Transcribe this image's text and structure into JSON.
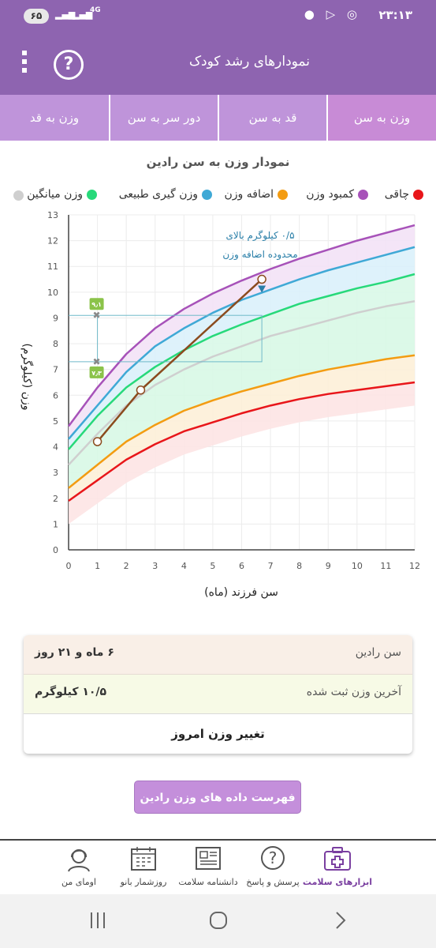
{
  "status_bar": {
    "battery": "۶۵",
    "network": "4G",
    "time": "۲۳:۱۳"
  },
  "app_bar": {
    "title": "نمودارهای رشد کودک"
  },
  "tabs": [
    {
      "label": "وزن به سن",
      "selected": true
    },
    {
      "label": "قد به سن",
      "selected": false
    },
    {
      "label": "دور سر به سن",
      "selected": false
    },
    {
      "label": "وزن به قد",
      "selected": false
    }
  ],
  "chart_header": {
    "title": "نمودار وزن به سن رادین"
  },
  "legend": [
    {
      "label": "چاقی",
      "color": "#e8161a"
    },
    {
      "label": "کمبود وزن",
      "color": "#f39c12"
    },
    {
      "label": "اضافه وزن",
      "color": "#3fa9d6"
    },
    {
      "label": "وزن گیری طبیعی",
      "color": "#27d97a"
    },
    {
      "label": "وزن میانگین",
      "color": "#cfcfcf"
    }
  ],
  "chart_data": {
    "type": "line",
    "xlabel": "سن فرزند (ماه)",
    "ylabel": "وزن (کیلوگرم)",
    "xlim": [
      0,
      12
    ],
    "ylim": [
      0,
      13
    ],
    "x_ticks": [
      "0",
      "1",
      "2",
      "3",
      "4",
      "5",
      "6",
      "7",
      "8",
      "9",
      "10",
      "11",
      "12"
    ],
    "y_ticks": [
      "0",
      "1",
      "2",
      "3",
      "4",
      "5",
      "6",
      "7",
      "8",
      "9",
      "10",
      "11",
      "12",
      "13"
    ],
    "x": [
      0,
      1,
      2,
      3,
      4,
      5,
      6,
      7,
      8,
      9,
      10,
      11,
      12
    ],
    "series": [
      {
        "color": "#e8161a",
        "values": [
          1.9,
          2.7,
          3.5,
          4.1,
          4.6,
          4.95,
          5.3,
          5.6,
          5.85,
          6.05,
          6.2,
          6.35,
          6.5
        ]
      },
      {
        "color": "#f39c12",
        "values": [
          2.4,
          3.3,
          4.2,
          4.85,
          5.4,
          5.8,
          6.15,
          6.45,
          6.75,
          7.0,
          7.2,
          7.4,
          7.55
        ]
      },
      {
        "color": "#cfcfcf",
        "values": [
          3.3,
          4.5,
          5.6,
          6.4,
          7.0,
          7.5,
          7.9,
          8.3,
          8.6,
          8.9,
          9.2,
          9.45,
          9.65
        ]
      },
      {
        "color": "#27d97a",
        "values": [
          3.9,
          5.2,
          6.3,
          7.1,
          7.75,
          8.3,
          8.75,
          9.15,
          9.55,
          9.85,
          10.15,
          10.4,
          10.7
        ]
      },
      {
        "color": "#3fa9d6",
        "values": [
          4.3,
          5.6,
          6.9,
          7.9,
          8.6,
          9.2,
          9.7,
          10.1,
          10.5,
          10.85,
          11.15,
          11.45,
          11.75
        ]
      },
      {
        "color": "#a752b9",
        "values": [
          4.8,
          6.3,
          7.6,
          8.6,
          9.35,
          9.95,
          10.45,
          10.9,
          11.3,
          11.65,
          12.0,
          12.3,
          12.6
        ]
      }
    ],
    "child_weights": {
      "x": [
        1.0,
        2.5,
        6.7
      ],
      "y": [
        4.2,
        6.2,
        10.5
      ],
      "color": "#8b4b1e"
    },
    "expected_range": {
      "x_from": 1.0,
      "x_to": 6.7,
      "min": 7.3,
      "max": 9.1,
      "min_label": "۷٫۳",
      "max_label": "۹٫۱"
    },
    "annotation": {
      "line1": "۰/۵ کیلوگرم بالای",
      "line2": "محدوده اضافه وزن"
    }
  },
  "info": {
    "age_label": "سن رادین",
    "age_value": "۶ ماه و ۲۱ روز",
    "weight_label": "آخرین وزن ثبت شده",
    "weight_value": "۱۰/۵ کیلوگرم",
    "change_button": "تغییر وزن امروز"
  },
  "list_button": "فهرست داده های وزن رادین",
  "bottom_nav": [
    {
      "label": "ابزارهای سلامت",
      "icon": "health-kit-icon",
      "active": true
    },
    {
      "label": "پرسش و پاسخ",
      "icon": "question-icon",
      "active": false
    },
    {
      "label": "دانشنامه سلامت",
      "icon": "news-icon",
      "active": false
    },
    {
      "label": "روزشمار بانو",
      "icon": "calendar-icon",
      "active": false
    },
    {
      "label": "اومای من",
      "icon": "profile-icon",
      "active": false
    }
  ]
}
